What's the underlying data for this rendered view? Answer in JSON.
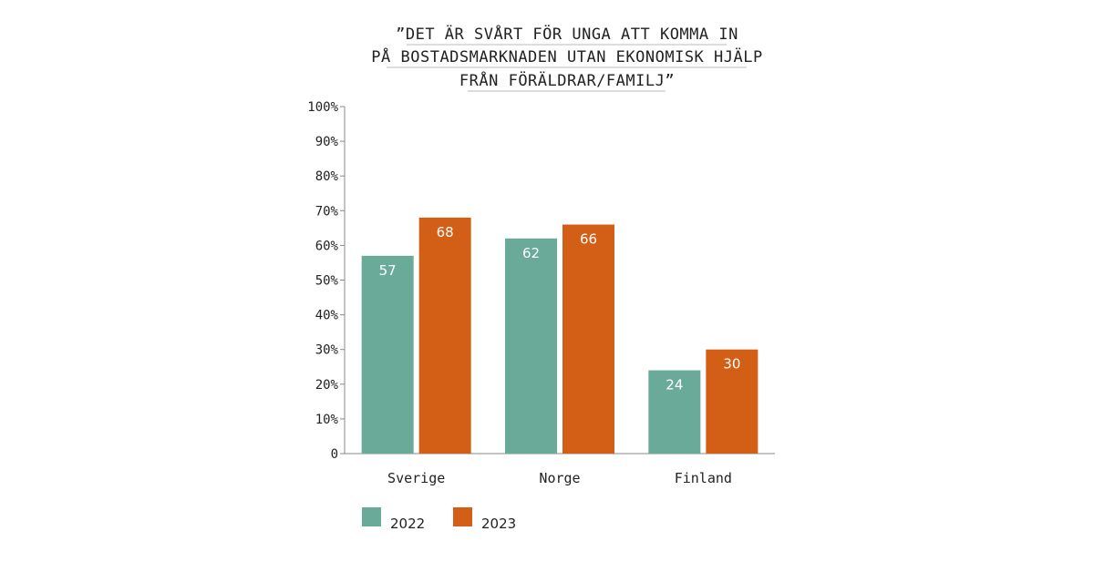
{
  "chart_data": {
    "type": "bar",
    "title_lines": [
      "”DET ÄR SVÅRT FÖR UNGA ATT KOMMA IN",
      "PÅ BOSTADSMARKNADEN UTAN EKONOMISK HJÄLP",
      "FRÅN FÖRÄLDRAR/FAMILJ”"
    ],
    "categories": [
      "Sverige",
      "Norge",
      "Finland"
    ],
    "series": [
      {
        "name": "2022",
        "values": [
          57,
          62,
          24
        ],
        "color": "#6aaa99"
      },
      {
        "name": "2023",
        "values": [
          68,
          66,
          30
        ],
        "color": "#d35f17"
      }
    ],
    "y_ticks": [
      "0",
      "10%",
      "20%",
      "30%",
      "40%",
      "50%",
      "60%",
      "70%",
      "80%",
      "90%",
      "100%"
    ],
    "ylim": [
      0,
      100
    ],
    "grid": false,
    "legend_position": "bottom-left"
  }
}
